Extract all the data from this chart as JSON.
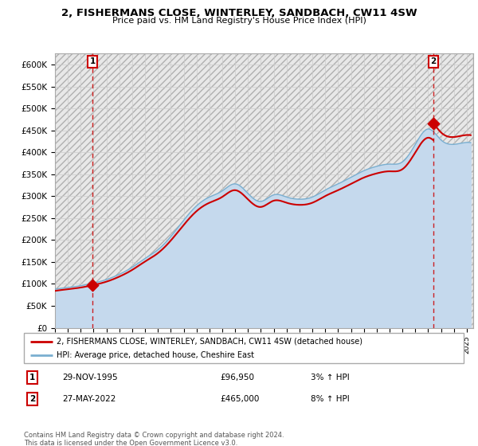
{
  "title": "2, FISHERMANS CLOSE, WINTERLEY, SANDBACH, CW11 4SW",
  "subtitle": "Price paid vs. HM Land Registry's House Price Index (HPI)",
  "ylabel_ticks": [
    "£0",
    "£50K",
    "£100K",
    "£150K",
    "£200K",
    "£250K",
    "£300K",
    "£350K",
    "£400K",
    "£450K",
    "£500K",
    "£550K",
    "£600K"
  ],
  "ytick_values": [
    0,
    50000,
    100000,
    150000,
    200000,
    250000,
    300000,
    350000,
    400000,
    450000,
    500000,
    550000,
    600000
  ],
  "xlim_start": 1993.0,
  "xlim_end": 2025.5,
  "ylim_min": 0,
  "ylim_max": 625000,
  "purchase_dates": [
    1995.91,
    2022.4
  ],
  "purchase_prices": [
    96950,
    465000
  ],
  "purchase_labels": [
    "1",
    "2"
  ],
  "hpi_fill_color": "#c5d9ed",
  "hpi_line_color": "#7aafd0",
  "price_color": "#cc0000",
  "marker_color": "#cc0000",
  "dashed_color": "#cc0000",
  "legend_label_1": "2, FISHERMANS CLOSE, WINTERLEY, SANDBACH, CW11 4SW (detached house)",
  "legend_label_2": "HPI: Average price, detached house, Cheshire East",
  "table_rows": [
    [
      "1",
      "29-NOV-1995",
      "£96,950",
      "3% ↑ HPI"
    ],
    [
      "2",
      "27-MAY-2022",
      "£465,000",
      "8% ↑ HPI"
    ]
  ],
  "footnote": "Contains HM Land Registry data © Crown copyright and database right 2024.\nThis data is licensed under the Open Government Licence v3.0.",
  "background_color": "#ffffff",
  "grid_color": "#cccccc"
}
